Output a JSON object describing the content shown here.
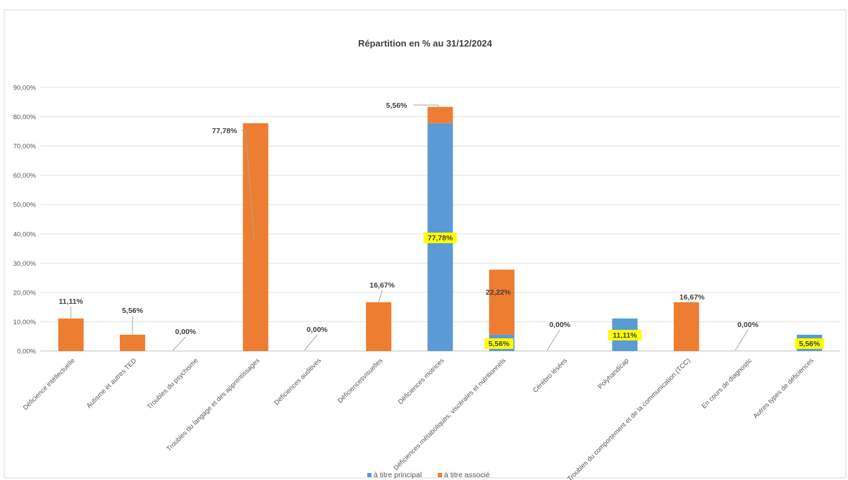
{
  "chart_data": {
    "type": "bar",
    "stacked": true,
    "title": "Répartition en  %  au 31/12/2024",
    "xlabel": "",
    "ylabel": "",
    "ylim": [
      0,
      90
    ],
    "yticks": [
      "0,00%",
      "10,00%",
      "20,00%",
      "30,00%",
      "40,00%",
      "50,00%",
      "60,00%",
      "70,00%",
      "80,00%",
      "90,00%"
    ],
    "grid": true,
    "legend_position": "bottom",
    "categories": [
      "Déficience intellectuelle",
      "Autisme et autres TED",
      "Troubles du psychisme",
      "Troubles du langage et des apprentissages",
      "Déficiences auditives",
      "Déficiencesvisuelles",
      "Déficiences motrices",
      "Déficiences métaboliques, viscérales et nutritionnels",
      "Cérébro lésées",
      "Polyhandicap",
      "Troubles du comportement et de la communication (TCC)",
      "En cours de diagnostic",
      "Autres types de déficiences"
    ],
    "series": [
      {
        "name": "à titre principal",
        "color": "#5b9bd5",
        "values": [
          0,
          0,
          0,
          0,
          0,
          0,
          77.78,
          5.56,
          0,
          11.11,
          0,
          0,
          5.56
        ]
      },
      {
        "name": "à titre associé",
        "color": "#ed7d31",
        "values": [
          11.11,
          5.56,
          0,
          77.78,
          0,
          16.67,
          5.56,
          22.22,
          0,
          0,
          16.67,
          0,
          0
        ]
      }
    ],
    "data_labels": [
      {
        "category": 0,
        "text": "11,11%",
        "highlight": false
      },
      {
        "category": 1,
        "text": "5,56%",
        "highlight": false
      },
      {
        "category": 2,
        "text": "0,00%",
        "highlight": false
      },
      {
        "category": 3,
        "text": "77,78%",
        "highlight": false
      },
      {
        "category": 4,
        "text": "0,00%",
        "highlight": false
      },
      {
        "category": 5,
        "text": "16,67%",
        "highlight": false
      },
      {
        "category": 6,
        "text": "5,56%",
        "highlight": false
      },
      {
        "category": 6,
        "text": "77,78%",
        "highlight": true
      },
      {
        "category": 7,
        "text": "22,22%",
        "highlight": false
      },
      {
        "category": 7,
        "text": "5,56%",
        "highlight": true
      },
      {
        "category": 8,
        "text": "0,00%",
        "highlight": false
      },
      {
        "category": 9,
        "text": "11,11%",
        "highlight": true
      },
      {
        "category": 10,
        "text": "16,67%",
        "highlight": false
      },
      {
        "category": 11,
        "text": "0,00%",
        "highlight": false
      },
      {
        "category": 12,
        "text": "5,56%",
        "highlight": true
      }
    ],
    "highlight_color": "#ffff00"
  }
}
